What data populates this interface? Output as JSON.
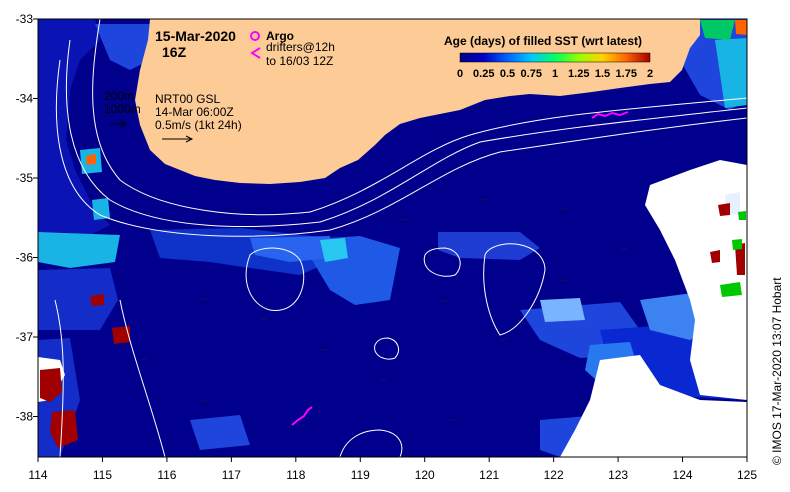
{
  "map": {
    "date": "15-Mar-2020",
    "hour": "16Z",
    "legend_title": "Age (days) of filled SST (wrt latest)",
    "colorbar_ticks": [
      "0",
      "0.25",
      "0.5",
      "0.75",
      "1",
      "1.25",
      "1.5",
      "1.75",
      "2"
    ],
    "colorbar_colors": [
      "#000080",
      "#0000c8",
      "#0064ff",
      "#00c8ff",
      "#00ff64",
      "#96ff00",
      "#ffd200",
      "#ff6400",
      "#a00000"
    ],
    "argo_label": "Argo",
    "drifters_label": "drifters@12h",
    "drifters_range": "to 16/03 12Z",
    "isobath_200": "200m",
    "isobath_1000": "1000m",
    "currents_source": "NRT00 GSL",
    "currents_time": "14-Mar 06:00Z",
    "speed_scale": "0.5m/s (1kt 24h)",
    "x_ticks": [
      "114",
      "115",
      "116",
      "117",
      "118",
      "119",
      "120",
      "121",
      "122",
      "123",
      "124",
      "125"
    ],
    "y_ticks": [
      "-33",
      "-34",
      "-35",
      "-36",
      "-37",
      "-38"
    ],
    "credit": "© IMOS 17-Mar-2020 13:07 Hobart",
    "colors": {
      "land": "#fccb96",
      "ocean": "#00008c",
      "argo": "#ff00ff"
    }
  }
}
